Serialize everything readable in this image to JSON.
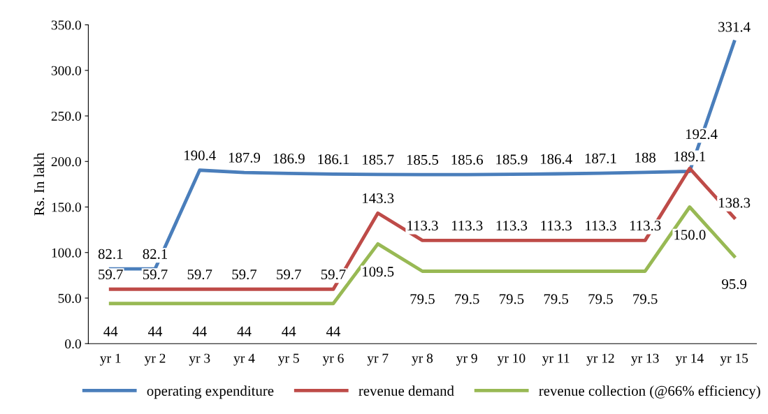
{
  "chart_data": {
    "type": "line",
    "ylabel": "Rs. In lakh",
    "categories": [
      "yr 1",
      "yr 2",
      "yr 3",
      "yr 4",
      "yr 5",
      "yr 6",
      "yr 7",
      "yr 8",
      "yr 9",
      "yr 10",
      "yr 11",
      "yr 12",
      "yr 13",
      "yr 14",
      "yr 15"
    ],
    "series": [
      {
        "name": "operating expenditure",
        "color": "#4a7ebb",
        "values": [
          82.1,
          82.1,
          190.4,
          187.9,
          186.9,
          186.1,
          185.7,
          185.5,
          185.6,
          185.9,
          186.4,
          187.1,
          188,
          189.1,
          331.4
        ],
        "value_labels": [
          "82.1",
          "82.1",
          "190.4",
          "187.9",
          "186.9",
          "186.1",
          "185.7",
          "185.5",
          "185.6",
          "185.9",
          "186.4",
          "187.1",
          "188",
          "189.1",
          "331.4"
        ]
      },
      {
        "name": "revenue demand",
        "color": "#be4b48",
        "values": [
          59.7,
          59.7,
          59.7,
          59.7,
          59.7,
          59.7,
          143.3,
          113.3,
          113.3,
          113.3,
          113.3,
          113.3,
          113.3,
          192.4,
          138.3
        ],
        "value_labels": [
          "59.7",
          "59.7",
          "59.7",
          "59.7",
          "59.7",
          "59.7",
          "143.3",
          "113.3",
          "113.3",
          "113.3",
          "113.3",
          "113.3",
          "113.3",
          "192.4",
          "138.3"
        ]
      },
      {
        "name": "revenue collection (@66% efficiency)",
        "color": "#98b954",
        "values": [
          44,
          44,
          44,
          44,
          44,
          44,
          109.5,
          79.5,
          79.5,
          79.5,
          79.5,
          79.5,
          79.5,
          150.0,
          95.9
        ],
        "value_labels": [
          "44",
          "44",
          "44",
          "44",
          "44",
          "44",
          "109.5",
          "79.5",
          "79.5",
          "79.5",
          "79.5",
          "79.5",
          "79.5",
          "150.0",
          "95.9"
        ]
      }
    ],
    "ylim": [
      0,
      350
    ],
    "yticks": [
      {
        "value": 0,
        "label": "0.0"
      },
      {
        "value": 50,
        "label": "50.0"
      },
      {
        "value": 100,
        "label": "100.0"
      },
      {
        "value": 150,
        "label": "150.0"
      },
      {
        "value": 200,
        "label": "200.0"
      },
      {
        "value": 250,
        "label": "250.0"
      },
      {
        "value": 300,
        "label": "300.0"
      },
      {
        "value": 350,
        "label": "350.0"
      }
    ],
    "grid": false,
    "legend": "bottom",
    "marker": "none",
    "line_style": "solid"
  }
}
